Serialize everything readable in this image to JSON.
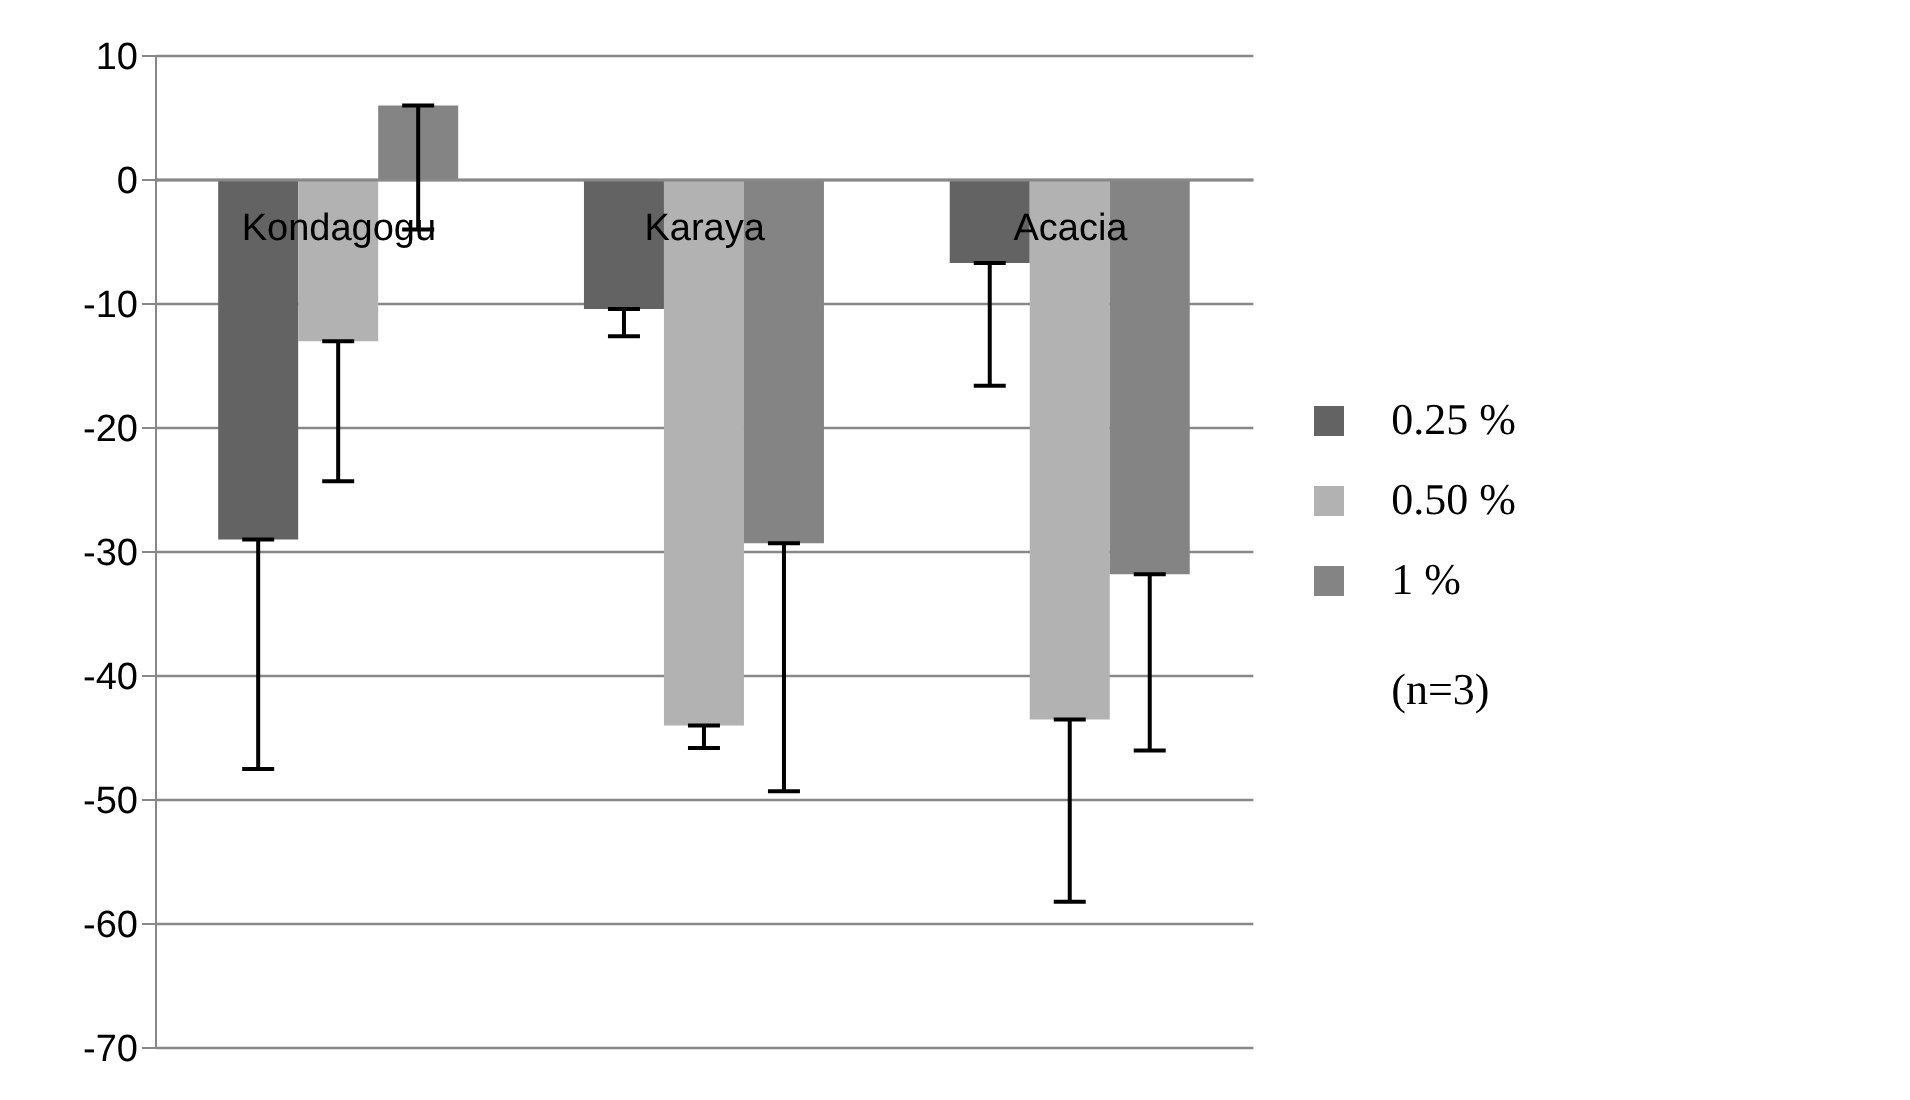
{
  "chart_data": {
    "type": "bar",
    "categories": [
      "Kondagogu",
      "Karaya",
      "Acacia"
    ],
    "series": [
      {
        "name": "0.25 %",
        "color": "#636363",
        "values": [
          -29,
          -10.4,
          -6.7
        ],
        "errors": [
          [
            -47.5,
            -29
          ],
          [
            -12.6,
            -10.4
          ],
          [
            -16.6,
            -6.7
          ]
        ]
      },
      {
        "name": "0.50 %",
        "color": "#b2b2b2",
        "values": [
          -13,
          -44,
          -43.5
        ],
        "errors": [
          [
            -24.3,
            -13
          ],
          [
            -45.8,
            -44
          ],
          [
            -58.2,
            -43.5
          ]
        ]
      },
      {
        "name": "1 %",
        "color": "#848484",
        "values": [
          6,
          -29.3,
          -31.8
        ],
        "errors": [
          [
            -4,
            6
          ],
          [
            -49.3,
            -29.3
          ],
          [
            -46,
            -31.8
          ]
        ]
      }
    ],
    "ylim": [
      -70,
      10
    ],
    "yticks": [
      -70,
      -60,
      -50,
      -40,
      -30,
      -20,
      -10,
      0,
      10
    ],
    "grid": "y",
    "legend": "right",
    "annotations": [
      "(n=3)"
    ]
  }
}
